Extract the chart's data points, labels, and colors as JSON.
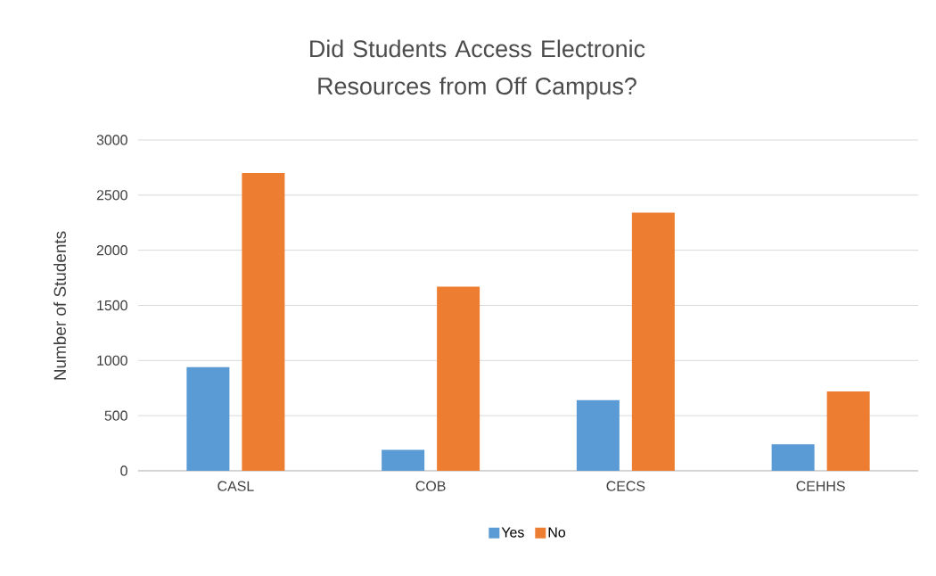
{
  "chart_data": {
    "type": "bar",
    "title": "Did Students Access Electronic Resources from Off Campus?",
    "ylabel": "Number of Students",
    "categories": [
      "CASL",
      "COB",
      "CECS",
      "CEHHS"
    ],
    "series": [
      {
        "name": "Yes",
        "color": "#5b9bd5",
        "values": [
          940,
          190,
          640,
          240
        ]
      },
      {
        "name": "No",
        "color": "#ed7d31",
        "values": [
          2700,
          1670,
          2340,
          720
        ]
      }
    ],
    "ylim": [
      0,
      3000
    ],
    "yticks": [
      0,
      500,
      1000,
      1500,
      2000,
      2500,
      3000
    ],
    "grid": "y",
    "legend": "bottom"
  }
}
